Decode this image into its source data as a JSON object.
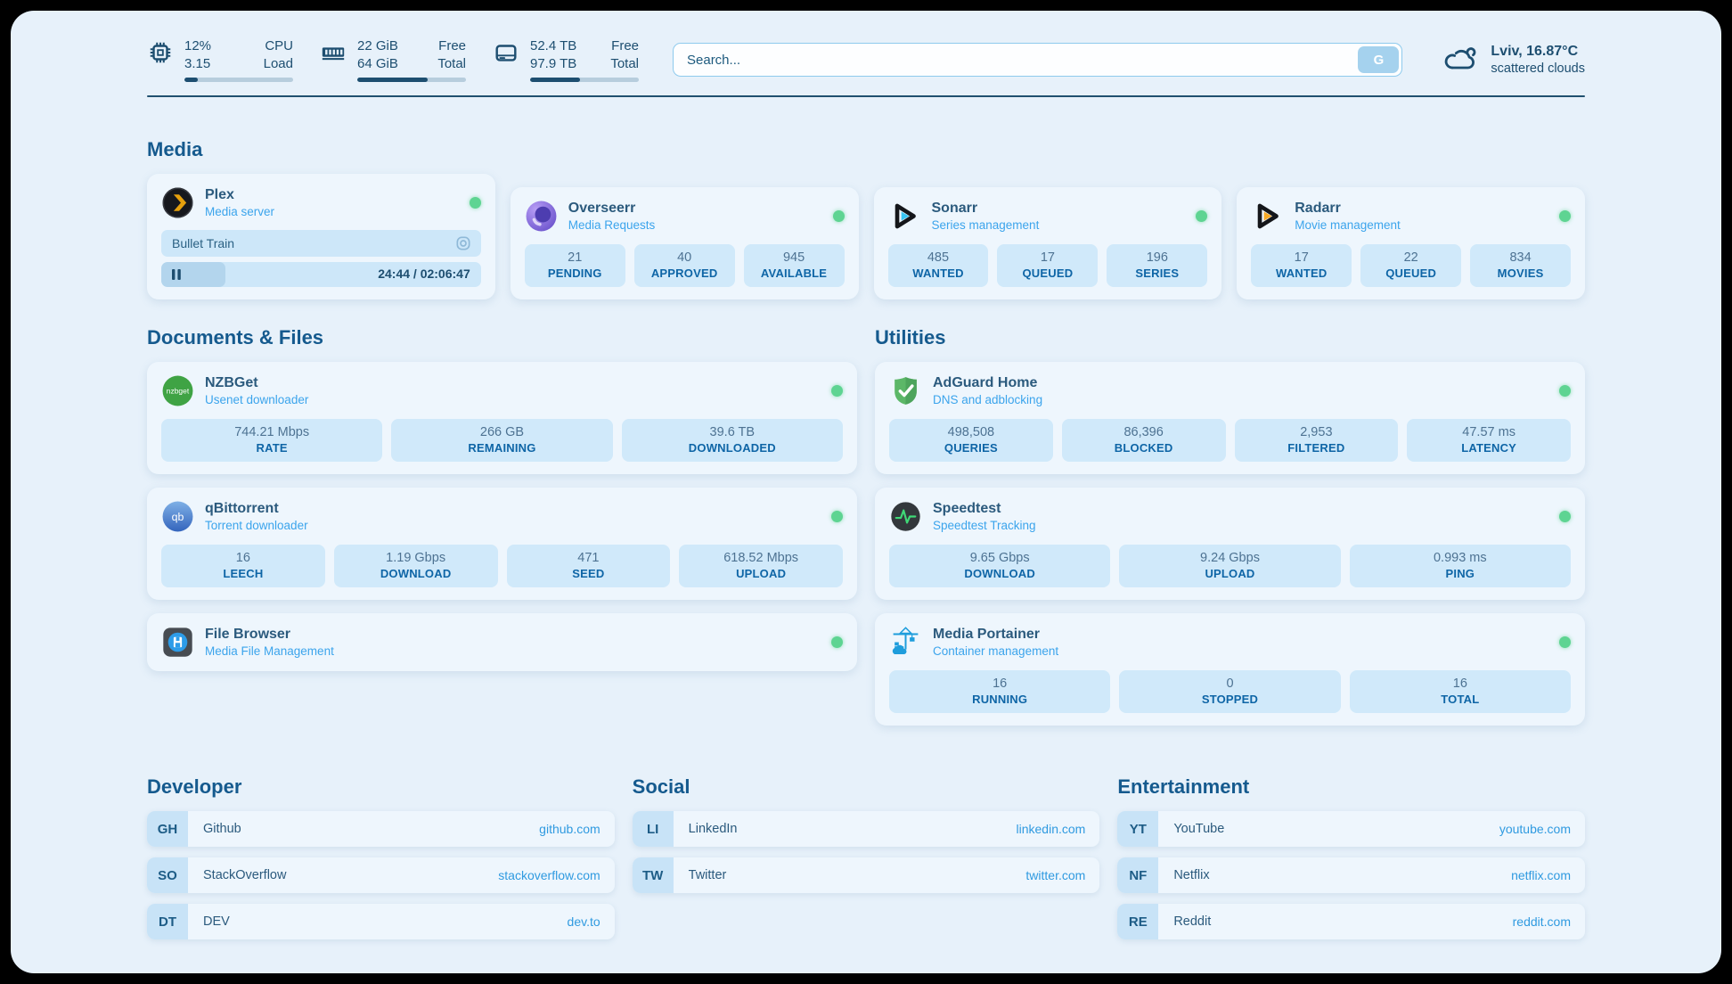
{
  "topbar": {
    "cpu": {
      "value_top": "12%",
      "value_bottom": "3.15",
      "label_top": "CPU",
      "label_bottom": "Load",
      "progress_pct": 12
    },
    "ram": {
      "value_top": "22 GiB",
      "value_bottom": "64 GiB",
      "label_top": "Free",
      "label_bottom": "Total",
      "progress_pct": 65
    },
    "disk": {
      "value_top": "52.4 TB",
      "value_bottom": "97.9 TB",
      "label_top": "Free",
      "label_bottom": "Total",
      "progress_pct": 46
    },
    "search": {
      "placeholder": "Search...",
      "button_label": "G"
    },
    "weather": {
      "location_temp": "Lviv, 16.87°C",
      "condition": "scattered clouds"
    }
  },
  "media": {
    "heading": "Media",
    "plex": {
      "title": "Plex",
      "subtitle": "Media server",
      "now_playing": "Bullet Train",
      "time_display": "24:44 / 02:06:47",
      "progress_pct": 20
    },
    "overseerr": {
      "title": "Overseerr",
      "subtitle": "Media Requests",
      "stats": [
        {
          "value": "21",
          "label": "PENDING"
        },
        {
          "value": "40",
          "label": "APPROVED"
        },
        {
          "value": "945",
          "label": "AVAILABLE"
        }
      ]
    },
    "sonarr": {
      "title": "Sonarr",
      "subtitle": "Series management",
      "stats": [
        {
          "value": "485",
          "label": "WANTED"
        },
        {
          "value": "17",
          "label": "QUEUED"
        },
        {
          "value": "196",
          "label": "SERIES"
        }
      ]
    },
    "radarr": {
      "title": "Radarr",
      "subtitle": "Movie management",
      "stats": [
        {
          "value": "17",
          "label": "WANTED"
        },
        {
          "value": "22",
          "label": "QUEUED"
        },
        {
          "value": "834",
          "label": "MOVIES"
        }
      ]
    }
  },
  "documents": {
    "heading": "Documents & Files",
    "nzbget": {
      "title": "NZBGet",
      "subtitle": "Usenet downloader",
      "stats": [
        {
          "value": "744.21 Mbps",
          "label": "RATE"
        },
        {
          "value": "266 GB",
          "label": "REMAINING"
        },
        {
          "value": "39.6 TB",
          "label": "DOWNLOADED"
        }
      ]
    },
    "qbittorrent": {
      "title": "qBittorrent",
      "subtitle": "Torrent downloader",
      "stats": [
        {
          "value": "16",
          "label": "LEECH"
        },
        {
          "value": "1.19 Gbps",
          "label": "DOWNLOAD"
        },
        {
          "value": "471",
          "label": "SEED"
        },
        {
          "value": "618.52 Mbps",
          "label": "UPLOAD"
        }
      ]
    },
    "filebrowser": {
      "title": "File Browser",
      "subtitle": "Media File Management"
    }
  },
  "utilities": {
    "heading": "Utilities",
    "adguard": {
      "title": "AdGuard Home",
      "subtitle": "DNS and adblocking",
      "stats": [
        {
          "value": "498,508",
          "label": "QUERIES"
        },
        {
          "value": "86,396",
          "label": "BLOCKED"
        },
        {
          "value": "2,953",
          "label": "FILTERED"
        },
        {
          "value": "47.57 ms",
          "label": "LATENCY"
        }
      ]
    },
    "speedtest": {
      "title": "Speedtest",
      "subtitle": "Speedtest Tracking",
      "stats": [
        {
          "value": "9.65 Gbps",
          "label": "DOWNLOAD"
        },
        {
          "value": "9.24 Gbps",
          "label": "UPLOAD"
        },
        {
          "value": "0.993 ms",
          "label": "PING"
        }
      ]
    },
    "portainer": {
      "title": "Media Portainer",
      "subtitle": "Container management",
      "stats": [
        {
          "value": "16",
          "label": "RUNNING"
        },
        {
          "value": "0",
          "label": "STOPPED"
        },
        {
          "value": "16",
          "label": "TOTAL"
        }
      ]
    }
  },
  "links": {
    "developer": {
      "heading": "Developer",
      "items": [
        {
          "abbr": "GH",
          "name": "Github",
          "url": "github.com"
        },
        {
          "abbr": "SO",
          "name": "StackOverflow",
          "url": "stackoverflow.com"
        },
        {
          "abbr": "DT",
          "name": "DEV",
          "url": "dev.to"
        }
      ]
    },
    "social": {
      "heading": "Social",
      "items": [
        {
          "abbr": "LI",
          "name": "LinkedIn",
          "url": "linkedin.com"
        },
        {
          "abbr": "TW",
          "name": "Twitter",
          "url": "twitter.com"
        }
      ]
    },
    "entertainment": {
      "heading": "Entertainment",
      "items": [
        {
          "abbr": "YT",
          "name": "YouTube",
          "url": "youtube.com"
        },
        {
          "abbr": "NF",
          "name": "Netflix",
          "url": "netflix.com"
        },
        {
          "abbr": "RE",
          "name": "Reddit",
          "url": "reddit.com"
        }
      ]
    }
  },
  "colors": {
    "accent_blue": "#2f9ae0",
    "navy": "#1d4e70",
    "status_green": "#5ed492",
    "page_bg": "#e7f1fa",
    "card_bg": "#eef6fd",
    "stat_box_bg": "#d0e9fa"
  }
}
